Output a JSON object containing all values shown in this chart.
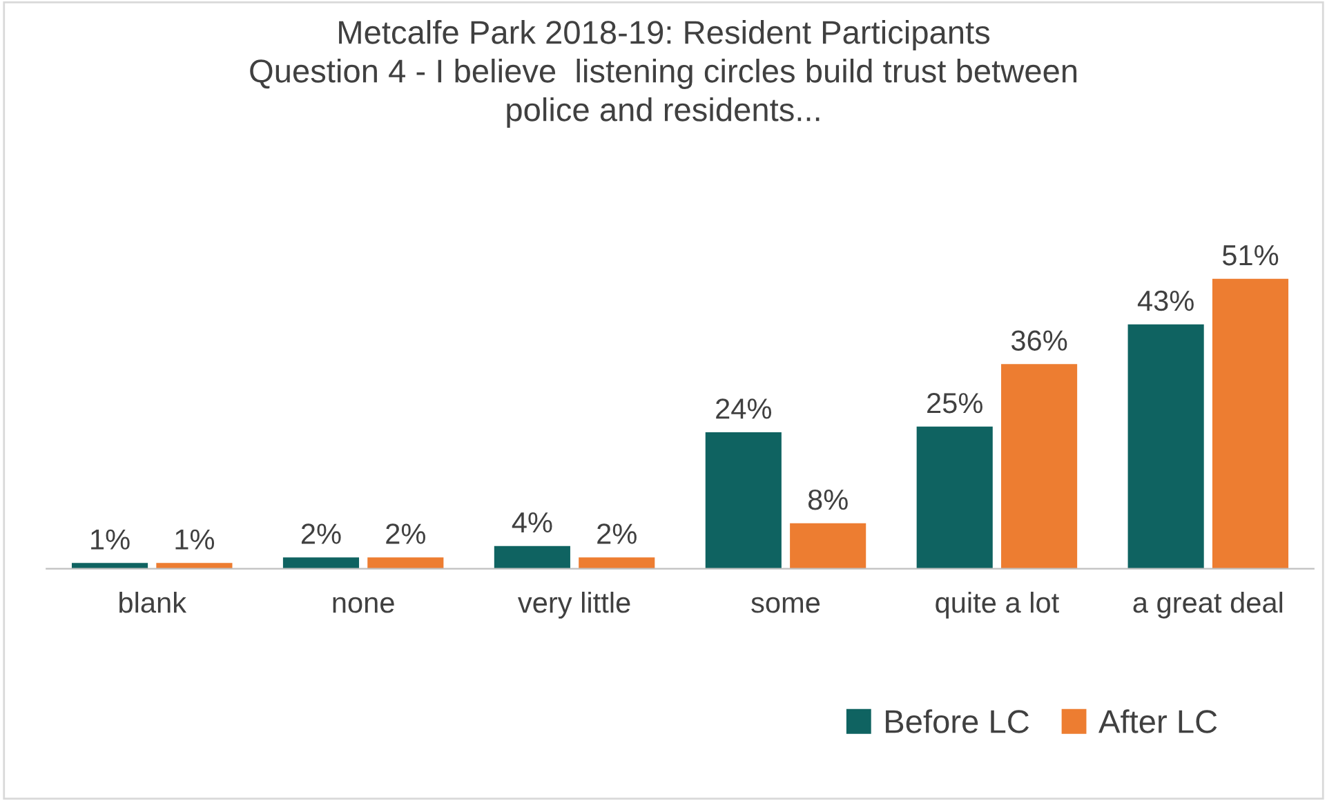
{
  "chart_data": {
    "type": "bar",
    "title": "Metcalfe Park 2018-19: Resident Participants\nQuestion 4 - I believe  listening circles build trust between\npolice and residents...",
    "categories": [
      "blank",
      "none",
      "very little",
      "some",
      "quite a lot",
      "a great deal"
    ],
    "series": [
      {
        "name": "Before LC",
        "color": "#0f6361",
        "values": [
          1,
          2,
          4,
          24,
          25,
          43
        ],
        "value_labels": [
          "1%",
          "2%",
          "4%",
          "24%",
          "25%",
          "43%"
        ]
      },
      {
        "name": "After LC",
        "color": "#ed7d31",
        "values": [
          1,
          2,
          2,
          8,
          36,
          51
        ],
        "value_labels": [
          "1%",
          "2%",
          "2%",
          "8%",
          "36%",
          "51%"
        ]
      }
    ],
    "legend": "bottom right",
    "grid": false
  }
}
